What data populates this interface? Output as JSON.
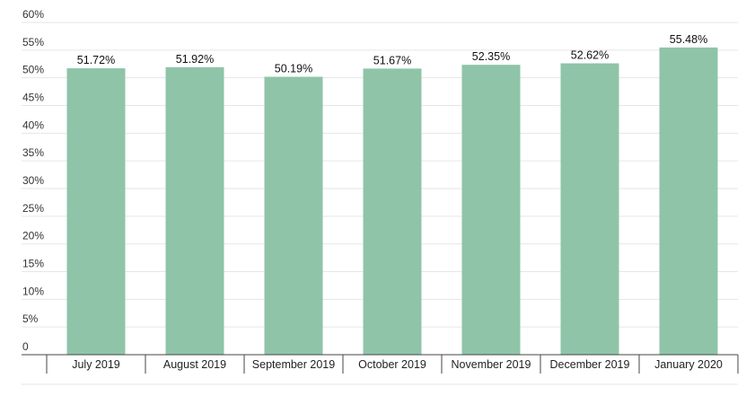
{
  "chart_data": {
    "type": "bar",
    "categories": [
      "July 2019",
      "August 2019",
      "September 2019",
      "October 2019",
      "November 2019",
      "December 2019",
      "January 2020"
    ],
    "values": [
      51.72,
      51.92,
      50.19,
      51.67,
      52.35,
      52.62,
      55.48
    ],
    "value_labels": [
      "51.72%",
      "51.92%",
      "50.19%",
      "51.67%",
      "52.35%",
      "52.62%",
      "55.48%"
    ],
    "y_ticks": [
      0,
      5,
      10,
      15,
      20,
      25,
      30,
      35,
      40,
      45,
      50,
      55,
      60
    ],
    "y_tick_labels": [
      "0",
      "5%",
      "10%",
      "15%",
      "20%",
      "25%",
      "30%",
      "35%",
      "40%",
      "45%",
      "50%",
      "55%",
      "60%"
    ],
    "ylim": [
      0,
      60
    ],
    "grid": true,
    "bar_color": "#8fc4a8",
    "grid_color": "#e6e6e6",
    "axis_color": "#444444"
  }
}
